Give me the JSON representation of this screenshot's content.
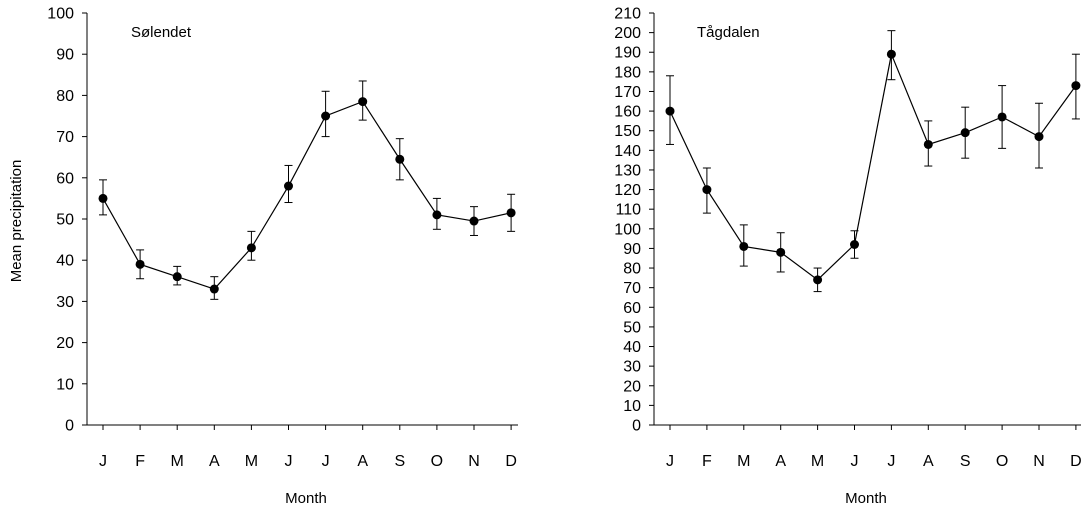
{
  "chart_data": [
    {
      "type": "line",
      "title": "Sølendet",
      "xlabel": "Month",
      "ylabel": "Mean precipitation",
      "categories": [
        "J",
        "F",
        "M",
        "A",
        "M",
        "J",
        "J",
        "A",
        "S",
        "O",
        "N",
        "D"
      ],
      "ylim": [
        0,
        100
      ],
      "yticks": [
        "0",
        "10",
        "20",
        "30",
        "40",
        "50",
        "60",
        "70",
        "80",
        "90",
        "100"
      ],
      "grid": false,
      "series": [
        {
          "values": [
            55,
            39,
            36,
            33,
            43,
            58,
            75,
            78.5,
            64.5,
            51,
            49.5,
            51.5
          ],
          "error_low": [
            51,
            35.5,
            34,
            30.5,
            40,
            54,
            70,
            74,
            59.5,
            47.5,
            46,
            47
          ],
          "error_high": [
            59.5,
            42.5,
            38.5,
            36,
            47,
            63,
            81,
            83.5,
            69.5,
            55,
            53,
            56
          ],
          "color": "#000000"
        }
      ]
    },
    {
      "type": "line",
      "title": "Tågdalen",
      "xlabel": "Month",
      "ylabel": "",
      "categories": [
        "J",
        "F",
        "M",
        "A",
        "M",
        "J",
        "J",
        "A",
        "S",
        "O",
        "N",
        "D"
      ],
      "ylim": [
        0,
        210
      ],
      "yticks": [
        "0",
        "10",
        "20",
        "30",
        "40",
        "50",
        "60",
        "70",
        "80",
        "90",
        "100",
        "110",
        "120",
        "130",
        "140",
        "150",
        "160",
        "170",
        "180",
        "190",
        "200",
        "210"
      ],
      "grid": false,
      "series": [
        {
          "values": [
            160,
            120,
            91,
            88,
            74,
            92,
            189,
            143,
            149,
            157,
            147,
            173
          ],
          "error_low": [
            143,
            108,
            81,
            78,
            68,
            85,
            176,
            132,
            136,
            141,
            131,
            156
          ],
          "error_high": [
            178,
            131,
            102,
            98,
            80,
            99,
            201,
            155,
            162,
            173,
            164,
            189
          ],
          "color": "#000000"
        }
      ]
    }
  ]
}
